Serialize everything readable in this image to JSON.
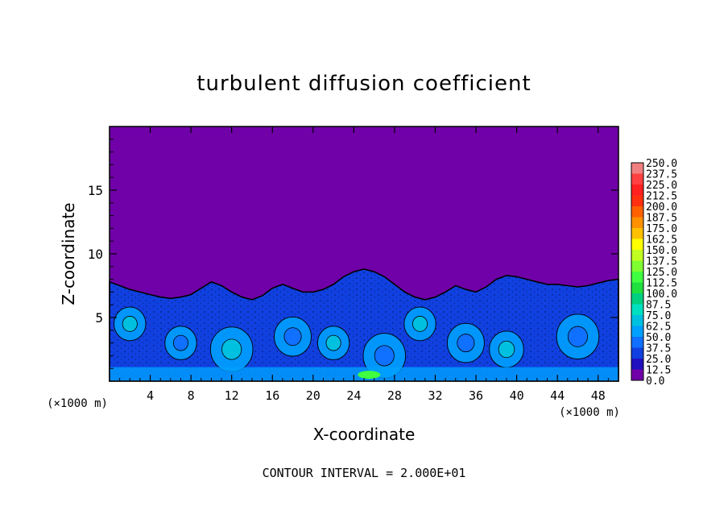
{
  "chart_data": {
    "type": "heatmap",
    "title": "turbulent diffusion coefficient",
    "xlabel": "X-coordinate",
    "ylabel": "Z-coordinate",
    "x_unit_left": "(×1000 m)",
    "x_unit_right": "(×1000 m)",
    "xlim": [
      0,
      50
    ],
    "ylim": [
      0,
      20
    ],
    "x_ticks": [
      4,
      8,
      12,
      16,
      20,
      24,
      28,
      32,
      36,
      40,
      44,
      48
    ],
    "y_ticks": [
      5,
      10,
      15
    ],
    "footer": "CONTOUR INTERVAL = 2.000E+01",
    "colorbar": {
      "labels": [
        "250.0",
        "237.5",
        "225.0",
        "212.5",
        "200.0",
        "187.5",
        "175.0",
        "162.5",
        "150.0",
        "137.5",
        "125.0",
        "112.5",
        "100.0",
        "87.5",
        "75.0",
        "62.5",
        "50.0",
        "37.5",
        "25.0",
        "12.5",
        "0.0"
      ],
      "colors": [
        "#f08080",
        "#ff4040",
        "#ff2020",
        "#ff3010",
        "#ff6000",
        "#ff9000",
        "#ffc000",
        "#ffff00",
        "#c0ff20",
        "#80ff30",
        "#40ff40",
        "#20e040",
        "#00d080",
        "#00e0c0",
        "#00c0e0",
        "#00a0ff",
        "#1070ff",
        "#1040e0",
        "#2010c0",
        "#7000a8"
      ]
    },
    "boundary_layer_top_km": [
      7.8,
      7.5,
      7.2,
      7.0,
      6.8,
      6.6,
      6.5,
      6.6,
      6.8,
      7.3,
      7.8,
      7.5,
      7.0,
      6.6,
      6.4,
      6.7,
      7.3,
      7.6,
      7.3,
      7.0,
      7.0,
      7.2,
      7.6,
      8.2,
      8.6,
      8.8,
      8.6,
      8.2,
      7.6,
      7.0,
      6.6,
      6.4,
      6.6,
      7.0,
      7.5,
      7.2,
      7.0,
      7.4,
      8.0,
      8.3,
      8.2,
      8.0,
      7.8,
      7.6,
      7.6,
      7.5,
      7.4,
      7.5,
      7.7,
      7.9,
      8.0
    ]
  }
}
